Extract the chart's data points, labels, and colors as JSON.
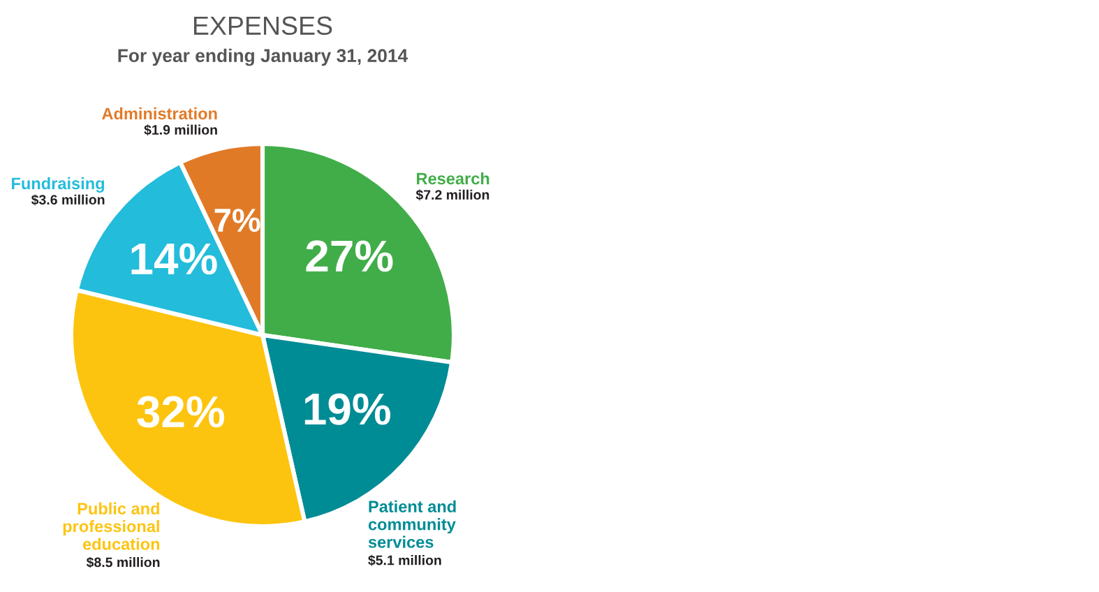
{
  "chart_data": {
    "type": "pie",
    "title": "EXPENSES",
    "subtitle": "For year ending January 31, 2014",
    "categories": [
      "Research",
      "Patient and\ncommunity\nservices",
      "Public and\nprofessional\neducation",
      "Fundraising",
      "Administration"
    ],
    "values": [
      27,
      19,
      32,
      14,
      7
    ],
    "value_labels": [
      "27%",
      "19%",
      "32%",
      "14%",
      "7%"
    ],
    "colors": [
      "#41ad49",
      "#008c95",
      "#fdc40f",
      "#23bcdb",
      "#e17a27"
    ],
    "annotations": [
      "$7.2 million",
      "$5.1 million",
      "$8.5 million",
      "$3.6 million",
      "$1.9 million"
    ]
  }
}
